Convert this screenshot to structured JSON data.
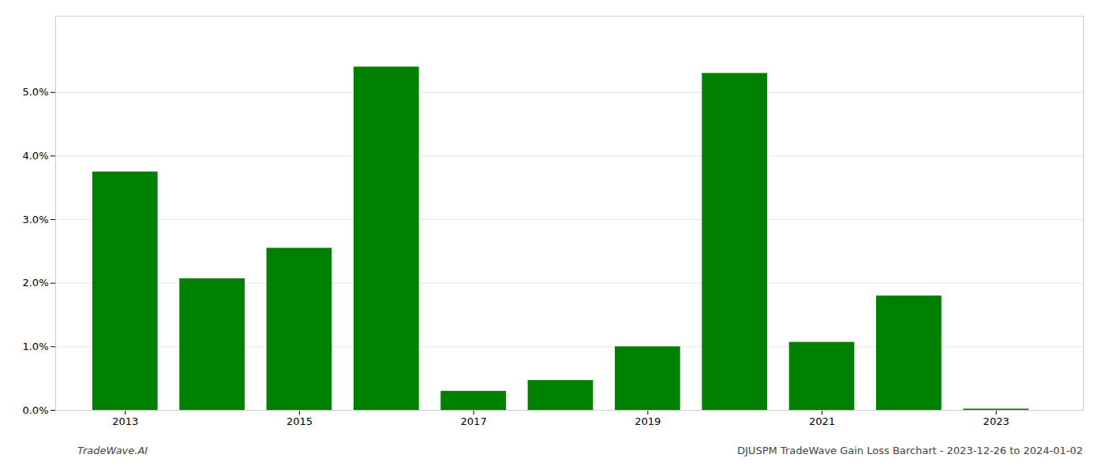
{
  "chart_data": {
    "type": "bar",
    "x": [
      2013,
      2014,
      2015,
      2016,
      2017,
      2018,
      2019,
      2020,
      2021,
      2022,
      2023
    ],
    "values": [
      0.0375,
      0.0207,
      0.0255,
      0.054,
      0.003,
      0.0047,
      0.01,
      0.053,
      0.0107,
      0.018,
      0.0002
    ],
    "color": "#008000",
    "xlim": [
      2012.2,
      2024.0
    ],
    "xticks": [
      2013,
      2015,
      2017,
      2019,
      2021,
      2023
    ],
    "ylim": [
      0,
      0.062
    ],
    "yticks": [
      {
        "value": 0.0,
        "label": "0.0%"
      },
      {
        "value": 0.01,
        "label": "1.0%"
      },
      {
        "value": 0.02,
        "label": "2.0%"
      },
      {
        "value": 0.03,
        "label": "3.0%"
      },
      {
        "value": 0.04,
        "label": "4.0%"
      },
      {
        "value": 0.05,
        "label": "5.0%"
      }
    ],
    "grid": true,
    "annotations": [
      "TradeWave.AI",
      "DJUSPM TradeWave Gain Loss Barchart - 2023-12-26 to 2024-01-02"
    ]
  }
}
